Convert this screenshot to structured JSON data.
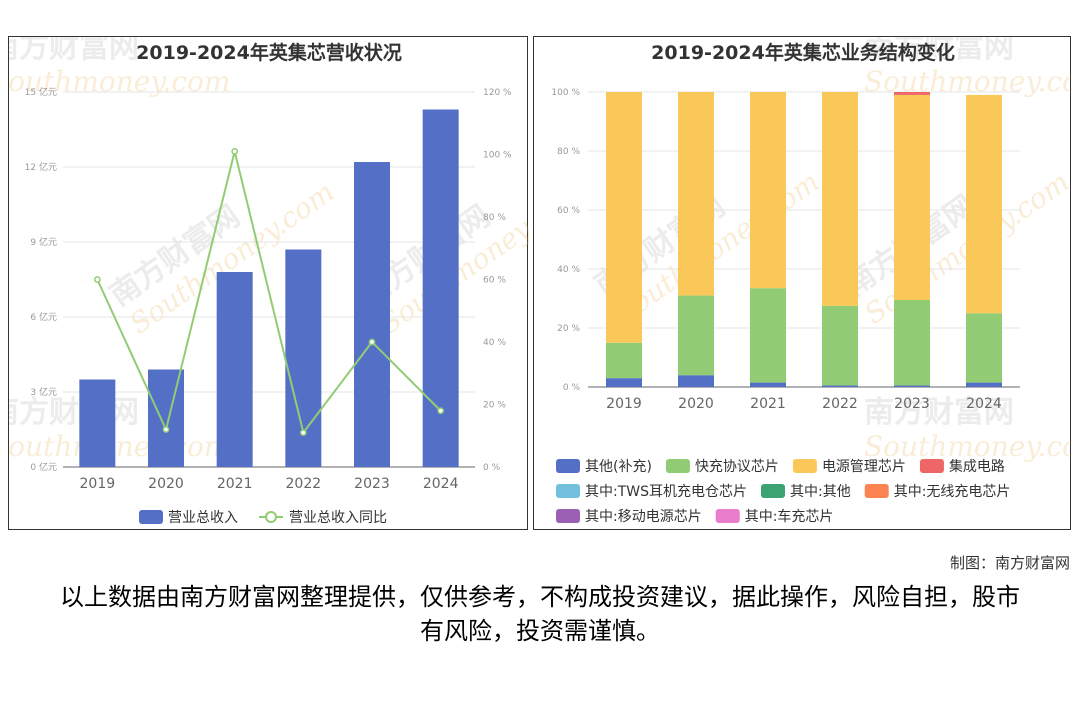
{
  "charts": [
    {
      "title": "2019-2024年英集芯营收状况",
      "type": "bar+line",
      "categories": [
        "2019",
        "2020",
        "2021",
        "2022",
        "2023",
        "2024"
      ],
      "left_axis": {
        "ticks": [
          "0 亿元",
          "3 亿元",
          "6 亿元",
          "9 亿元",
          "12 亿元",
          "15 亿元"
        ],
        "ylim": [
          0,
          15
        ]
      },
      "right_axis": {
        "ticks": [
          "0 %",
          "20 %",
          "40 %",
          "60 %",
          "80 %",
          "100 %",
          "120 %"
        ],
        "ylim": [
          0,
          120
        ]
      },
      "series": [
        {
          "name": "营业总收入",
          "type": "bar",
          "color": "#5470c6",
          "values": [
            3.5,
            3.9,
            7.8,
            8.7,
            12.2,
            14.3
          ]
        },
        {
          "name": "营业总收入同比",
          "type": "line",
          "color": "#91cc75",
          "values": [
            60,
            12,
            101,
            11,
            40,
            18
          ]
        }
      ],
      "legend_position": "bottom"
    },
    {
      "title": "2019-2024年英集芯业务结构变化",
      "type": "bar",
      "stacked": true,
      "categories": [
        "2019",
        "2020",
        "2021",
        "2022",
        "2023",
        "2024"
      ],
      "y_axis": {
        "ticks": [
          "0 %",
          "20 %",
          "40 %",
          "60 %",
          "80 %",
          "100 %"
        ],
        "ylim": [
          0,
          100
        ]
      },
      "series": [
        {
          "name": "其他(补充)",
          "color": "#5470c6",
          "values": [
            3,
            4,
            1.5,
            0.5,
            0.5,
            1.5
          ]
        },
        {
          "name": "快充协议芯片",
          "color": "#91cc75",
          "values": [
            12,
            27,
            32,
            27,
            29,
            23.5
          ]
        },
        {
          "name": "电源管理芯片",
          "color": "#fac858",
          "values": [
            85,
            69,
            66.5,
            72.5,
            69.5,
            74
          ]
        },
        {
          "name": "集成电路",
          "color": "#ee6666",
          "values": [
            0,
            0,
            0,
            0,
            1,
            0
          ]
        },
        {
          "name": "其中:TWS耳机充电仓芯片",
          "color": "#73c0de",
          "values": [
            0,
            0,
            0,
            0,
            0,
            0
          ]
        },
        {
          "name": "其中:其他",
          "color": "#3ba272",
          "values": [
            0,
            0,
            0,
            0,
            0,
            0
          ]
        },
        {
          "name": "其中:无线充电芯片",
          "color": "#fc8452",
          "values": [
            0,
            0,
            0,
            0,
            0,
            0
          ]
        },
        {
          "name": "其中:移动电源芯片",
          "color": "#9a60b4",
          "values": [
            0,
            0,
            0,
            0,
            0,
            0
          ]
        },
        {
          "name": "其中:车充芯片",
          "color": "#ea7ccc",
          "values": [
            0,
            0,
            0,
            0,
            0,
            0
          ]
        }
      ],
      "legend_position": "bottom"
    }
  ],
  "watermark": {
    "text_cn": "南方财富网",
    "text_en": "Southmoney.com"
  },
  "footer": {
    "credit": "制图：南方财富网",
    "disclaimer": "以上数据由南方财富网整理提供，仅供参考，不构成投资建议，据此操作，风险自担，股市有风险，投资需谨慎。"
  }
}
